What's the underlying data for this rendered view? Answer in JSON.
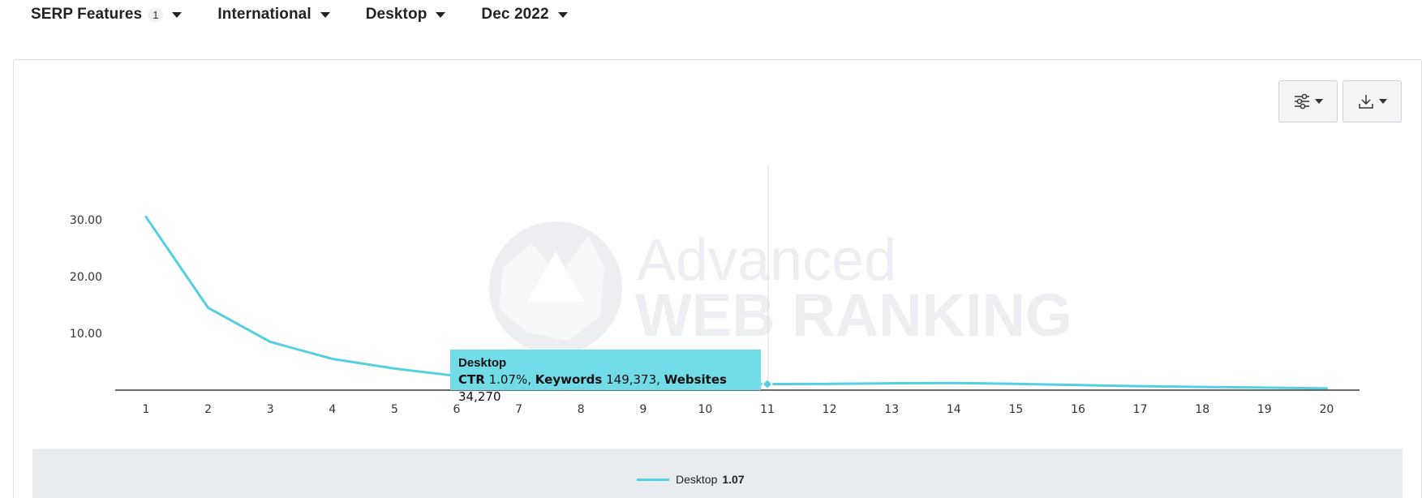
{
  "filters": [
    {
      "label": "SERP Features",
      "count": "1"
    },
    {
      "label": "International"
    },
    {
      "label": "Desktop"
    },
    {
      "label": "Dec 2022"
    }
  ],
  "toolbar": {
    "settings_icon": "sliders-icon",
    "download_icon": "download-icon"
  },
  "watermark": {
    "line1": "Advanced",
    "line2": "WEB RANKING"
  },
  "colors": {
    "series": "#56cfe0",
    "tooltip_bg": "#72dbe8",
    "legend_bg": "#e8ecef",
    "watermark": "#eceef2"
  },
  "tooltip": {
    "title": "Desktop",
    "ctr_label": "CTR",
    "ctr_value": "1.07%,",
    "keywords_label": "Keywords",
    "keywords_value": "149,373,",
    "websites_label": "Websites",
    "websites_value": "34,270"
  },
  "legend": {
    "name": "Desktop",
    "value": "1.07"
  },
  "chart_data": {
    "type": "line",
    "x": [
      1,
      2,
      3,
      4,
      5,
      6,
      7,
      8,
      9,
      10,
      11,
      12,
      13,
      14,
      15,
      16,
      17,
      18,
      19,
      20
    ],
    "series": [
      {
        "name": "Desktop",
        "values": [
          30.5,
          14.5,
          8.5,
          5.5,
          3.8,
          2.5,
          1.8,
          1.4,
          1.2,
          1.1,
          1.07,
          1.1,
          1.2,
          1.25,
          1.1,
          0.9,
          0.7,
          0.55,
          0.45,
          0.3
        ]
      }
    ],
    "y_ticks": [
      "30.00",
      "20.00",
      "10.00"
    ],
    "x_ticks": [
      "1",
      "2",
      "3",
      "4",
      "5",
      "6",
      "7",
      "8",
      "9",
      "10",
      "11",
      "12",
      "13",
      "14",
      "15",
      "16",
      "17",
      "18",
      "19",
      "20"
    ],
    "ylim": [
      0,
      36
    ],
    "highlight_x": 11,
    "grid": false,
    "legend_placement": "bottom"
  }
}
